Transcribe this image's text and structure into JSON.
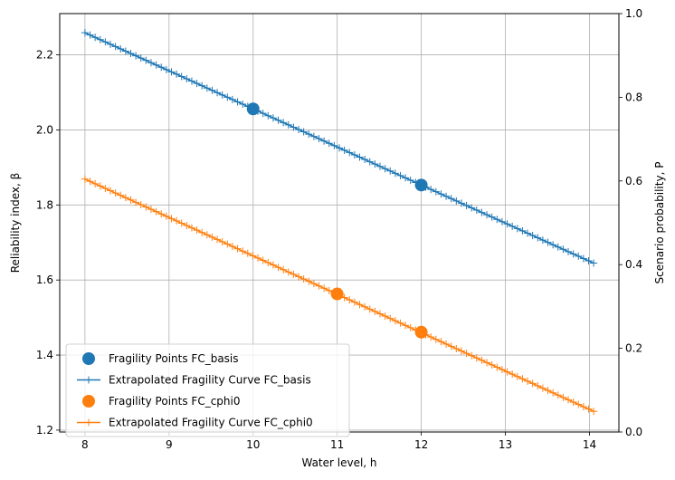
{
  "chart_data": {
    "type": "line",
    "xlabel": "Water level, h",
    "ylabel": "Reliability index, β",
    "y2label": "Scenario probability, P",
    "xlim": [
      7.7,
      14.35
    ],
    "ylim": [
      1.195,
      2.31
    ],
    "y2lim": [
      0.0,
      1.0
    ],
    "xticks": [
      8,
      9,
      10,
      11,
      12,
      13,
      14
    ],
    "yticks": [
      1.2,
      1.4,
      1.6,
      1.8,
      2.0,
      2.2
    ],
    "y2ticks": [
      0.0,
      0.2,
      0.4,
      0.6,
      0.8,
      1.0
    ],
    "grid": true,
    "legend_position": "lower-left",
    "series": [
      {
        "name": "Fragility Points FC_basis",
        "kind": "points",
        "color": "#1f77b4",
        "x": [
          10,
          12
        ],
        "y": [
          2.056,
          1.853
        ]
      },
      {
        "name": "Extrapolated Fragility Curve FC_basis",
        "kind": "line",
        "color": "#1f77b4",
        "x_start": 8.0,
        "x_end": 14.05,
        "y_start": 2.259,
        "y_end": 1.645,
        "markers": 101
      },
      {
        "name": "Fragility Points FC_cphi0",
        "kind": "points",
        "color": "#ff7f0e",
        "x": [
          11,
          12
        ],
        "y": [
          1.563,
          1.461
        ]
      },
      {
        "name": "Extrapolated Fragility Curve FC_cphi0",
        "kind": "line",
        "color": "#ff7f0e",
        "x_start": 8.0,
        "x_end": 14.05,
        "y_start": 1.869,
        "y_end": 1.25,
        "markers": 101
      }
    ]
  }
}
